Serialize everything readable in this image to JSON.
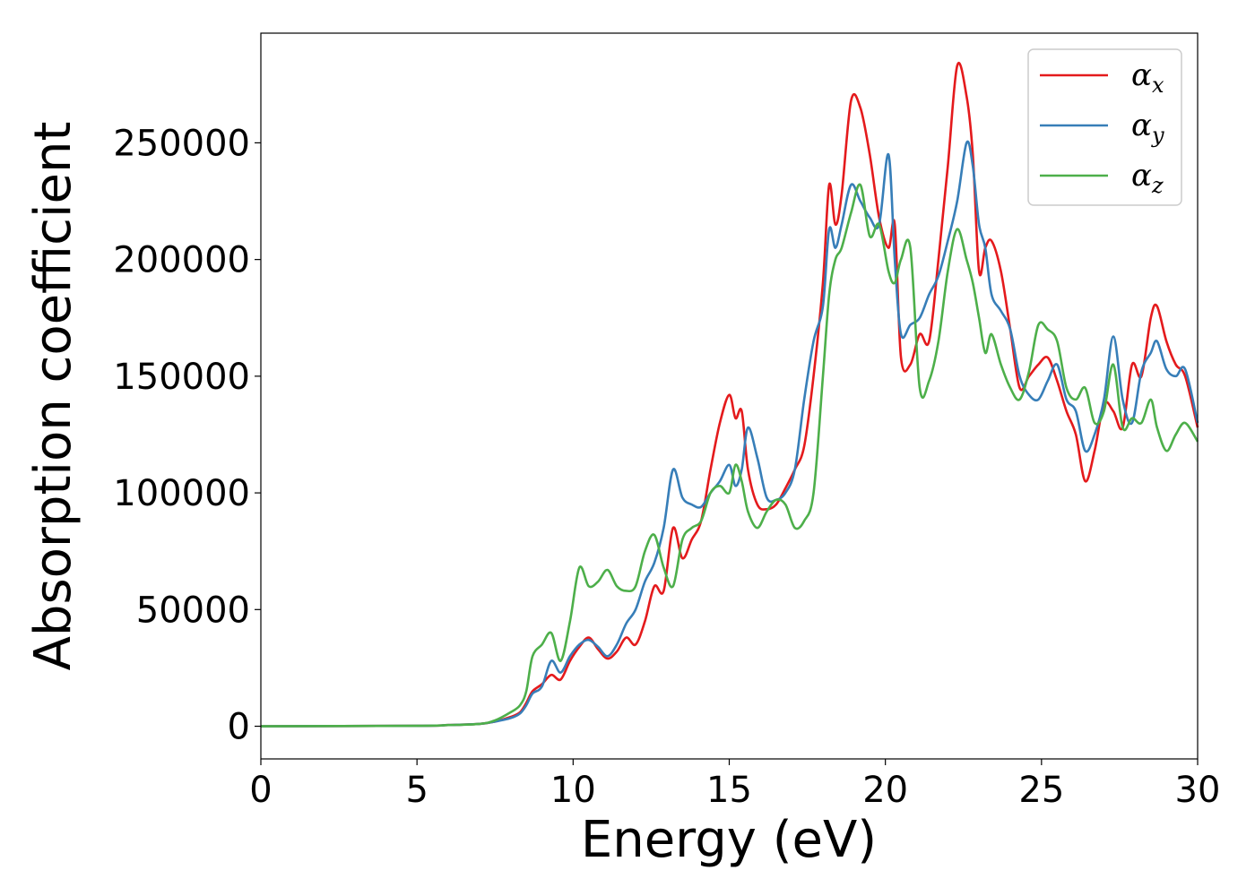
{
  "chart_data": {
    "type": "line",
    "xlabel": "Energy (eV)",
    "ylabel": "Absorption coefficient",
    "xlim": [
      0,
      30
    ],
    "ylim": [
      -14000,
      297000
    ],
    "xticks": [
      0,
      5,
      10,
      15,
      20,
      25,
      30
    ],
    "xtick_labels": [
      "0",
      "5",
      "10",
      "15",
      "20",
      "25",
      "30"
    ],
    "yticks": [
      0,
      50000,
      100000,
      150000,
      200000,
      250000
    ],
    "ytick_labels": [
      "0",
      "50000",
      "100000",
      "150000",
      "200000",
      "250000"
    ],
    "grid": false,
    "legend_position": "top-right",
    "series": [
      {
        "name": "αx",
        "symbol": "α",
        "subscript": "x",
        "color": "#e41a1c",
        "x": [
          0,
          5,
          6,
          7,
          7.5,
          8,
          8.3,
          8.5,
          8.7,
          9,
          9.3,
          9.6,
          9.9,
          10.2,
          10.5,
          10.8,
          11.1,
          11.4,
          11.7,
          12,
          12.3,
          12.6,
          12.9,
          13.2,
          13.5,
          13.8,
          14.1,
          14.4,
          14.7,
          15,
          15.2,
          15.4,
          15.6,
          15.9,
          16.2,
          16.5,
          16.8,
          17.1,
          17.4,
          17.7,
          18,
          18.2,
          18.4,
          18.6,
          18.9,
          19.2,
          19.5,
          19.8,
          20.1,
          20.3,
          20.5,
          20.8,
          21.1,
          21.4,
          21.7,
          22,
          22.3,
          22.6,
          22.8,
          23,
          23.2,
          23.4,
          23.7,
          24,
          24.3,
          24.6,
          24.9,
          25.2,
          25.5,
          25.8,
          26.1,
          26.4,
          26.7,
          27,
          27.3,
          27.6,
          27.9,
          28.2,
          28.5,
          28.7,
          29,
          29.3,
          29.6,
          30
        ],
        "y": [
          0,
          200,
          500,
          1000,
          2000,
          4000,
          6000,
          10000,
          15000,
          18000,
          22000,
          20000,
          28000,
          34000,
          38000,
          33000,
          29000,
          32000,
          38000,
          35000,
          45000,
          60000,
          58000,
          85000,
          72000,
          80000,
          88000,
          110000,
          130000,
          142000,
          132000,
          135000,
          110000,
          95000,
          93000,
          95000,
          102000,
          110000,
          120000,
          150000,
          190000,
          232000,
          215000,
          228000,
          268000,
          265000,
          245000,
          218000,
          205000,
          215000,
          158000,
          155000,
          168000,
          165000,
          200000,
          240000,
          283000,
          270000,
          245000,
          195000,
          205000,
          208000,
          195000,
          170000,
          145000,
          150000,
          155000,
          158000,
          148000,
          135000,
          125000,
          105000,
          118000,
          138000,
          135000,
          128000,
          155000,
          150000,
          175000,
          180000,
          165000,
          155000,
          150000,
          128000
        ]
      },
      {
        "name": "αy",
        "symbol": "α",
        "subscript": "y",
        "color": "#377eb8",
        "x": [
          0,
          5,
          6,
          7,
          7.5,
          8,
          8.3,
          8.5,
          8.7,
          9,
          9.3,
          9.6,
          9.9,
          10.2,
          10.5,
          10.8,
          11.1,
          11.4,
          11.7,
          12,
          12.3,
          12.6,
          12.9,
          13.2,
          13.5,
          13.8,
          14.1,
          14.4,
          14.7,
          15,
          15.2,
          15.4,
          15.6,
          15.9,
          16.2,
          16.5,
          16.8,
          17.1,
          17.4,
          17.7,
          18,
          18.2,
          18.4,
          18.6,
          18.9,
          19.2,
          19.5,
          19.8,
          20.1,
          20.3,
          20.5,
          20.8,
          21.1,
          21.4,
          21.7,
          22,
          22.3,
          22.6,
          22.8,
          23,
          23.2,
          23.4,
          23.7,
          24,
          24.3,
          24.6,
          24.9,
          25.2,
          25.5,
          25.8,
          26.1,
          26.4,
          26.7,
          27,
          27.3,
          27.6,
          27.9,
          28.2,
          28.5,
          28.7,
          29,
          29.3,
          29.6,
          30
        ],
        "y": [
          0,
          200,
          500,
          1000,
          2000,
          3500,
          5500,
          9000,
          14000,
          17000,
          28000,
          23000,
          30000,
          35000,
          37000,
          34000,
          30000,
          35000,
          44000,
          50000,
          62000,
          70000,
          85000,
          110000,
          98000,
          95000,
          94000,
          100000,
          105000,
          112000,
          103000,
          110000,
          128000,
          115000,
          98000,
          97000,
          100000,
          110000,
          140000,
          165000,
          180000,
          213000,
          205000,
          215000,
          232000,
          225000,
          218000,
          215000,
          245000,
          200000,
          168000,
          172000,
          175000,
          185000,
          193000,
          208000,
          225000,
          250000,
          240000,
          215000,
          205000,
          185000,
          178000,
          170000,
          150000,
          142000,
          140000,
          148000,
          155000,
          140000,
          135000,
          118000,
          125000,
          140000,
          167000,
          140000,
          130000,
          152000,
          160000,
          165000,
          153000,
          150000,
          153000,
          130000
        ]
      },
      {
        "name": "αz",
        "symbol": "α",
        "subscript": "z",
        "color": "#4daf4a",
        "x": [
          0,
          5,
          6,
          7,
          7.5,
          8,
          8.3,
          8.5,
          8.7,
          9,
          9.3,
          9.6,
          9.9,
          10.2,
          10.5,
          10.8,
          11.1,
          11.4,
          11.7,
          12,
          12.3,
          12.6,
          12.9,
          13.2,
          13.5,
          13.8,
          14.1,
          14.4,
          14.7,
          15,
          15.2,
          15.4,
          15.6,
          15.9,
          16.2,
          16.5,
          16.8,
          17.1,
          17.4,
          17.7,
          18,
          18.2,
          18.4,
          18.6,
          18.9,
          19.2,
          19.5,
          19.8,
          20.1,
          20.3,
          20.5,
          20.8,
          21.1,
          21.4,
          21.7,
          22,
          22.3,
          22.6,
          22.8,
          23,
          23.2,
          23.4,
          23.7,
          24,
          24.3,
          24.6,
          24.9,
          25.2,
          25.5,
          25.8,
          26.1,
          26.4,
          26.7,
          27,
          27.3,
          27.6,
          27.9,
          28.2,
          28.5,
          28.7,
          29,
          29.3,
          29.6,
          30
        ],
        "y": [
          0,
          200,
          500,
          1000,
          2500,
          6000,
          9000,
          15000,
          30000,
          35000,
          40000,
          28000,
          45000,
          68000,
          60000,
          62000,
          67000,
          60000,
          58000,
          60000,
          75000,
          82000,
          68000,
          60000,
          80000,
          85000,
          88000,
          100000,
          103000,
          100000,
          112000,
          105000,
          92000,
          85000,
          92000,
          97000,
          95000,
          85000,
          88000,
          100000,
          150000,
          185000,
          200000,
          205000,
          220000,
          232000,
          210000,
          215000,
          195000,
          190000,
          200000,
          205000,
          145000,
          148000,
          165000,
          195000,
          213000,
          200000,
          190000,
          175000,
          160000,
          168000,
          155000,
          145000,
          140000,
          152000,
          172000,
          170000,
          165000,
          145000,
          140000,
          145000,
          130000,
          135000,
          155000,
          128000,
          132000,
          130000,
          140000,
          128000,
          118000,
          125000,
          130000,
          122000
        ]
      }
    ]
  }
}
